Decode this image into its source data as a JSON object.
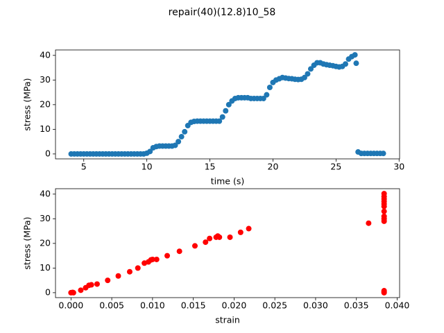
{
  "title": "repair(40)(12.8)10_58",
  "chart_data": [
    {
      "type": "scatter",
      "xlabel": "time (s)",
      "ylabel": "stress (MPa)",
      "x": [
        4,
        4.25,
        4.5,
        4.75,
        5,
        5.25,
        5.5,
        5.75,
        6,
        6.25,
        6.5,
        6.75,
        7,
        7.25,
        7.5,
        7.75,
        8,
        8.25,
        8.5,
        8.75,
        9,
        9.25,
        9.5,
        9.75,
        10,
        10.25,
        10.5,
        10.75,
        11,
        11.25,
        11.5,
        11.75,
        12,
        12.25,
        12.5,
        12.75,
        13,
        13.25,
        13.5,
        13.75,
        14,
        14.25,
        14.5,
        14.75,
        15,
        15.25,
        15.5,
        15.75,
        16,
        16.25,
        16.5,
        16.75,
        17,
        17.25,
        17.5,
        17.75,
        18,
        18.25,
        18.5,
        18.75,
        19,
        19.25,
        19.5,
        19.75,
        20,
        20.25,
        20.5,
        20.75,
        21,
        21.25,
        21.5,
        21.75,
        22,
        22.25,
        22.5,
        22.75,
        23,
        23.25,
        23.5,
        23.75,
        24,
        24.25,
        24.5,
        24.75,
        25,
        25.25,
        25.5,
        25.75,
        26,
        26.25,
        26.5,
        26.6,
        26.75,
        27,
        27.25,
        27.5,
        27.75,
        28,
        28.25,
        28.5,
        28.75
      ],
      "values": [
        0,
        0,
        0,
        0,
        0,
        0,
        0,
        0,
        0,
        0,
        0,
        0,
        0,
        0,
        0,
        0,
        0,
        0,
        0,
        0,
        0,
        0,
        0,
        0,
        0.3,
        1,
        2.5,
        3,
        3.2,
        3.2,
        3.2,
        3.2,
        3.2,
        3.5,
        5,
        7,
        9,
        11.5,
        12.8,
        13.2,
        13.3,
        13.3,
        13.3,
        13.3,
        13.3,
        13.3,
        13.3,
        13.3,
        15,
        17.5,
        20,
        21.5,
        22.5,
        22.8,
        22.8,
        22.8,
        22.8,
        22.5,
        22.5,
        22.5,
        22.5,
        22.5,
        24,
        27,
        29,
        30,
        30.5,
        31,
        30.8,
        30.6,
        30.5,
        30.3,
        30.2,
        30.3,
        31,
        32.5,
        34.5,
        36,
        37,
        37,
        36.5,
        36.2,
        36,
        35.8,
        35.5,
        35.3,
        35.5,
        36.5,
        38.5,
        39.5,
        40.2,
        36.8,
        0.8,
        0.2,
        0.2,
        0.2,
        0.2,
        0.2,
        0.2,
        0.2,
        0.2
      ],
      "color": "#1f77b4",
      "xlim": [
        2.76,
        30.04
      ],
      "xticks": [
        5,
        10,
        15,
        20,
        25,
        30
      ],
      "ylim": [
        -2.0,
        42.2
      ],
      "yticks": [
        0,
        10,
        20,
        30,
        40
      ]
    },
    {
      "type": "scatter",
      "xlabel": "strain",
      "ylabel": "stress (MPa)",
      "x": [
        0,
        0.0002,
        0.0003,
        0.0012,
        0.0018,
        0.0022,
        0.0025,
        0.0032,
        0.0045,
        0.0058,
        0.0072,
        0.0082,
        0.009,
        0.0095,
        0.0098,
        0.01,
        0.0105,
        0.0118,
        0.0133,
        0.0152,
        0.0165,
        0.017,
        0.0178,
        0.018,
        0.0182,
        0.0195,
        0.0208,
        0.0218,
        0.0365,
        0.0384,
        0.0384,
        0.0384,
        0.0384,
        0.0384,
        0.0384,
        0.0384,
        0.0384,
        0.0384,
        0.0384,
        0.0384,
        0.0384,
        0.0384
      ],
      "values": [
        0,
        0.1,
        0,
        1,
        2,
        3,
        3.2,
        3.5,
        5,
        6.8,
        8.5,
        10,
        12,
        12.5,
        13.3,
        13.5,
        13.5,
        15,
        16.8,
        19,
        20.5,
        22,
        22.5,
        23,
        22.5,
        22.5,
        24.5,
        26,
        28.2,
        29,
        30,
        31,
        33,
        35,
        36,
        37,
        38,
        39,
        40.2,
        0.8,
        0,
        0.3
      ],
      "color": "#ff0000",
      "xlim": [
        -0.0019,
        0.0403
      ],
      "xticks": [
        {
          "value": 0,
          "label": "0.000"
        },
        {
          "value": 0.005,
          "label": "0.005"
        },
        {
          "value": 0.01,
          "label": "0.010"
        },
        {
          "value": 0.015,
          "label": "0.015"
        },
        {
          "value": 0.02,
          "label": "0.020"
        },
        {
          "value": 0.025,
          "label": "0.025"
        },
        {
          "value": 0.03,
          "label": "0.030"
        },
        {
          "value": 0.035,
          "label": "0.035"
        },
        {
          "value": 0.04,
          "label": "0.040"
        }
      ],
      "ylim": [
        -2.0,
        42.2
      ],
      "yticks": [
        0,
        10,
        20,
        30,
        40
      ]
    }
  ]
}
